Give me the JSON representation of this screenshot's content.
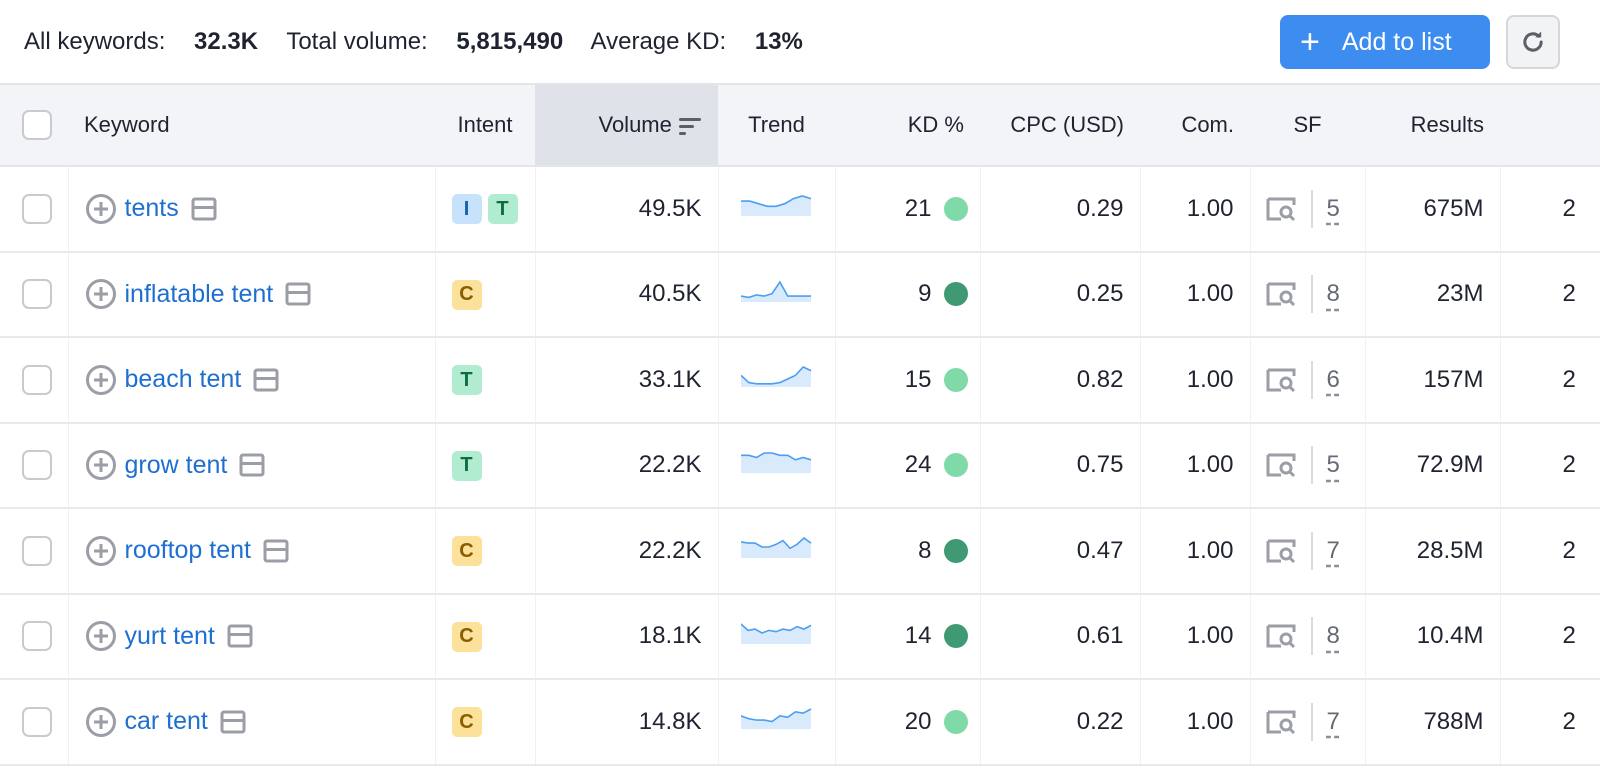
{
  "summary": {
    "all_keywords_label": "All keywords:",
    "all_keywords": "32.3K",
    "total_volume_label": "Total volume:",
    "total_volume": "5,815,490",
    "avg_kd_label": "Average KD:",
    "avg_kd": "13%"
  },
  "toolbar": {
    "add_label": "Add to list",
    "accent": "#3d8df0"
  },
  "columns": [
    "Keyword",
    "Intent",
    "Volume",
    "Trend",
    "KD %",
    "CPC (USD)",
    "Com.",
    "SF",
    "Results"
  ],
  "kd_colors": {
    "easy": "#7fdaa8",
    "very_easy": "#3f9a74"
  },
  "rows": [
    {
      "keyword": "tents",
      "intent": [
        "I",
        "T"
      ],
      "volume": "49.5K",
      "trend": [
        5,
        5,
        4,
        3,
        3,
        4,
        6,
        7,
        6
      ],
      "kd": "21",
      "kd_level": "easy",
      "cpc": "0.29",
      "com": "1.00",
      "sf": "5",
      "results": "675M",
      "extra": "2"
    },
    {
      "keyword": "inflatable tent",
      "intent": [
        "C"
      ],
      "volume": "40.5K",
      "trend": [
        3,
        2,
        4,
        3,
        5,
        14,
        3,
        3,
        3,
        3
      ],
      "kd": "9",
      "kd_level": "very_easy",
      "cpc": "0.25",
      "com": "1.00",
      "sf": "8",
      "results": "23M",
      "extra": "2"
    },
    {
      "keyword": "beach tent",
      "intent": [
        "T"
      ],
      "volume": "33.1K",
      "trend": [
        8,
        2,
        1,
        1,
        1,
        2,
        5,
        8,
        15,
        12
      ],
      "kd": "15",
      "kd_level": "easy",
      "cpc": "0.82",
      "com": "1.00",
      "sf": "6",
      "results": "157M",
      "extra": "2"
    },
    {
      "keyword": "grow tent",
      "intent": [
        "T"
      ],
      "volume": "22.2K",
      "trend": [
        7,
        7,
        6,
        8,
        8,
        7,
        7,
        5,
        6,
        5
      ],
      "kd": "24",
      "kd_level": "easy",
      "cpc": "0.75",
      "com": "1.00",
      "sf": "5",
      "results": "72.9M",
      "extra": "2"
    },
    {
      "keyword": "rooftop tent",
      "intent": [
        "C"
      ],
      "volume": "22.2K",
      "trend": [
        11,
        10,
        10,
        7,
        7,
        9,
        12,
        6,
        9,
        14,
        10
      ],
      "kd": "8",
      "kd_level": "very_easy",
      "cpc": "0.47",
      "com": "1.00",
      "sf": "7",
      "results": "28.5M",
      "extra": "2"
    },
    {
      "keyword": "yurt tent",
      "intent": [
        "C"
      ],
      "volume": "18.1K",
      "trend": [
        14,
        9,
        10,
        7,
        9,
        8,
        10,
        9,
        12,
        10,
        13
      ],
      "kd": "14",
      "kd_level": "very_easy",
      "cpc": "0.61",
      "com": "1.00",
      "sf": "8",
      "results": "10.4M",
      "extra": "2"
    },
    {
      "keyword": "car tent",
      "intent": [
        "C"
      ],
      "volume": "14.8K",
      "trend": [
        8,
        6,
        5,
        5,
        4,
        8,
        7,
        11,
        10,
        13
      ],
      "kd": "20",
      "kd_level": "easy",
      "cpc": "0.22",
      "com": "1.00",
      "sf": "7",
      "results": "788M",
      "extra": "2"
    }
  ]
}
